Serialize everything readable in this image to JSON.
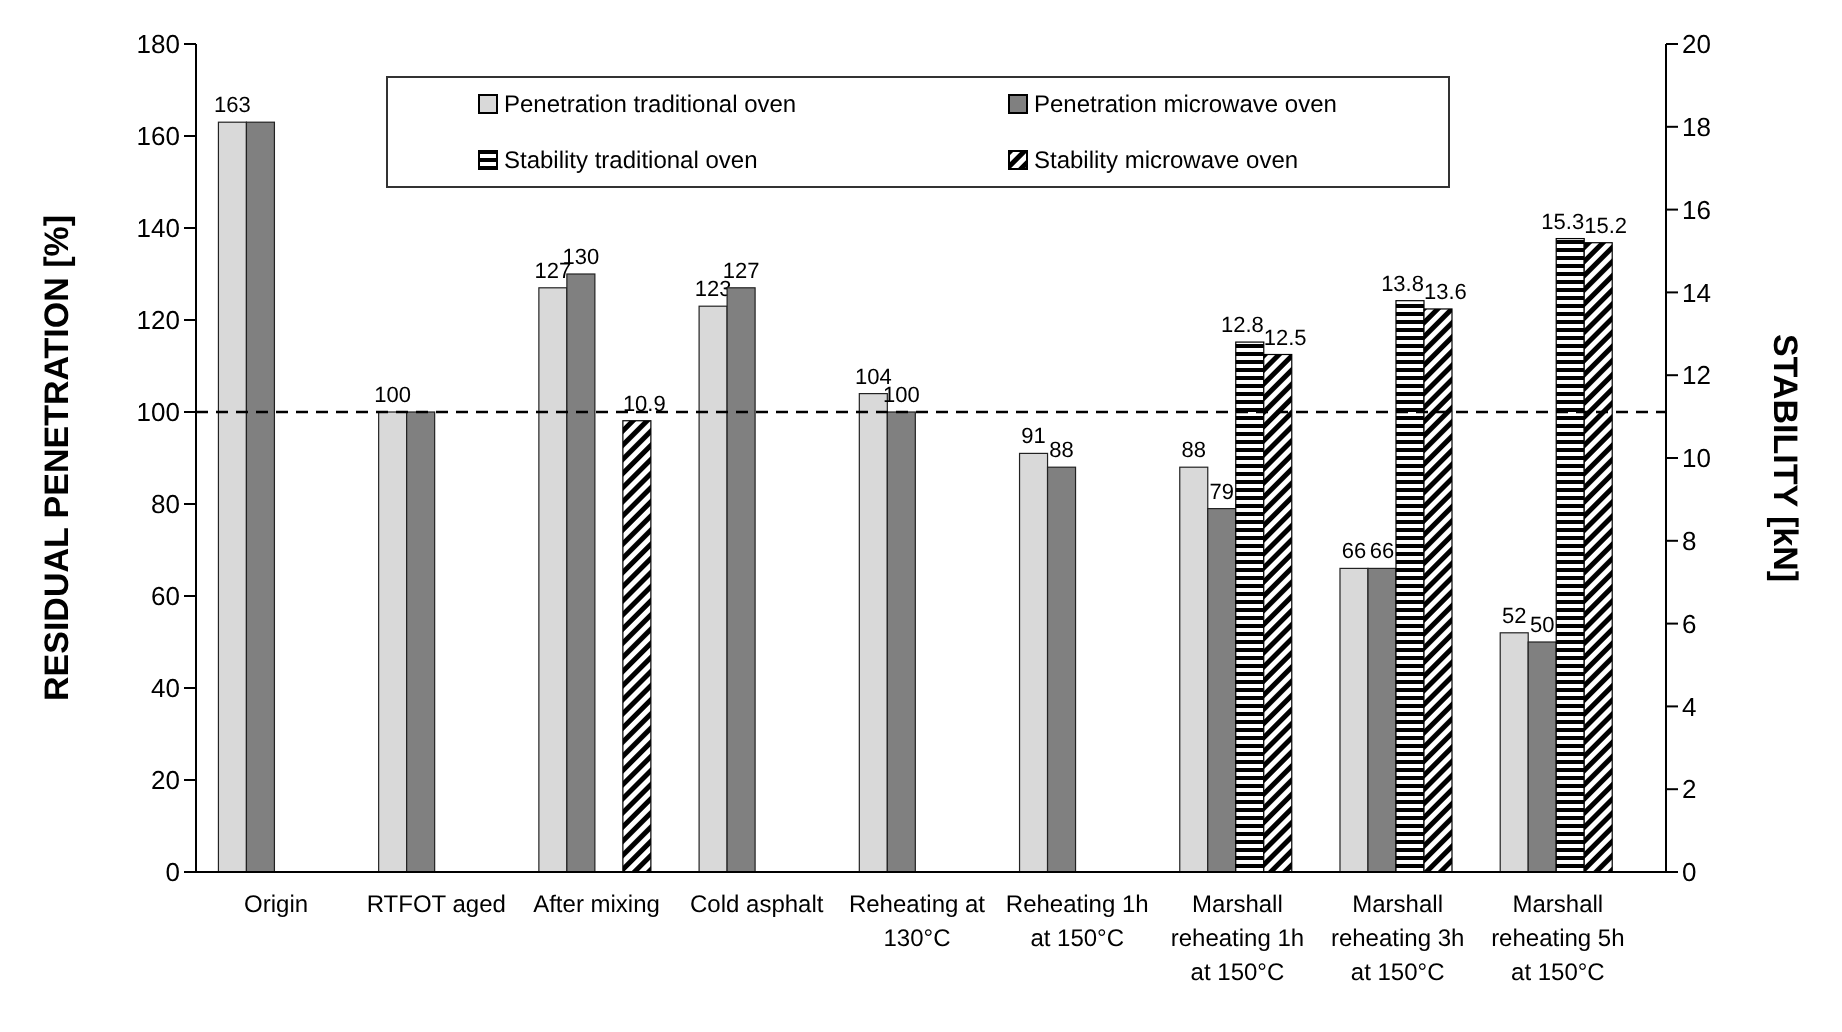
{
  "chart_data": {
    "type": "bar",
    "categories": [
      "Origin",
      "RTFOT aged",
      "After mixing",
      "Cold asphalt",
      "Reheating at 130°C",
      "Reheating 1h at 150°C",
      "Marshall reheating 1h at 150°C",
      "Marshall reheating 3h at 150°C",
      "Marshall reheating 5h at 150°C"
    ],
    "series": [
      {
        "name": "Penetration traditional oven",
        "color": "#d9d9d9",
        "values": [
          163,
          100,
          127,
          123,
          104,
          91,
          88,
          66,
          52
        ],
        "value_labels": [
          "163",
          "100",
          "127",
          "123",
          "104",
          "91",
          "88",
          "66",
          "52"
        ]
      },
      {
        "name": "Penetration microwave oven",
        "color": "#808080",
        "values": [
          163,
          100,
          130,
          127,
          100,
          88,
          79,
          66,
          50
        ],
        "value_labels": [
          null,
          null,
          "130",
          "127",
          "100",
          "88",
          "79",
          "66",
          "50"
        ]
      },
      {
        "name": "Stability traditional oven",
        "color": "#000000",
        "axis": "y2",
        "values": [
          null,
          null,
          null,
          null,
          null,
          null,
          12.8,
          13.8,
          15.3
        ],
        "value_labels": [
          null,
          null,
          null,
          null,
          null,
          null,
          "12.8",
          "13.8",
          "15.3"
        ]
      },
      {
        "name": "Stability microwave oven",
        "color": "#000000",
        "axis": "y2",
        "values": [
          null,
          null,
          10.9,
          null,
          null,
          null,
          12.5,
          13.6,
          15.2
        ],
        "value_labels": [
          null,
          null,
          "10.9",
          null,
          null,
          null,
          "12.5",
          "13.6",
          "15.2"
        ]
      }
    ],
    "ylabel": "RESIDUAL PENETRATION  [%]",
    "y2label": "STABILITY  [kN]",
    "ylim": [
      0,
      180
    ],
    "yticks": [
      0,
      20,
      40,
      60,
      80,
      100,
      120,
      140,
      160,
      180
    ],
    "y2lim": [
      0,
      20
    ],
    "y2ticks": [
      0,
      2,
      4,
      6,
      8,
      10,
      12,
      14,
      16,
      18,
      20
    ],
    "ref_lines": [
      {
        "axis": "y",
        "value": 100,
        "line_style": "dashed",
        "color": "#000000"
      }
    ],
    "grid": false,
    "legend": "top"
  }
}
